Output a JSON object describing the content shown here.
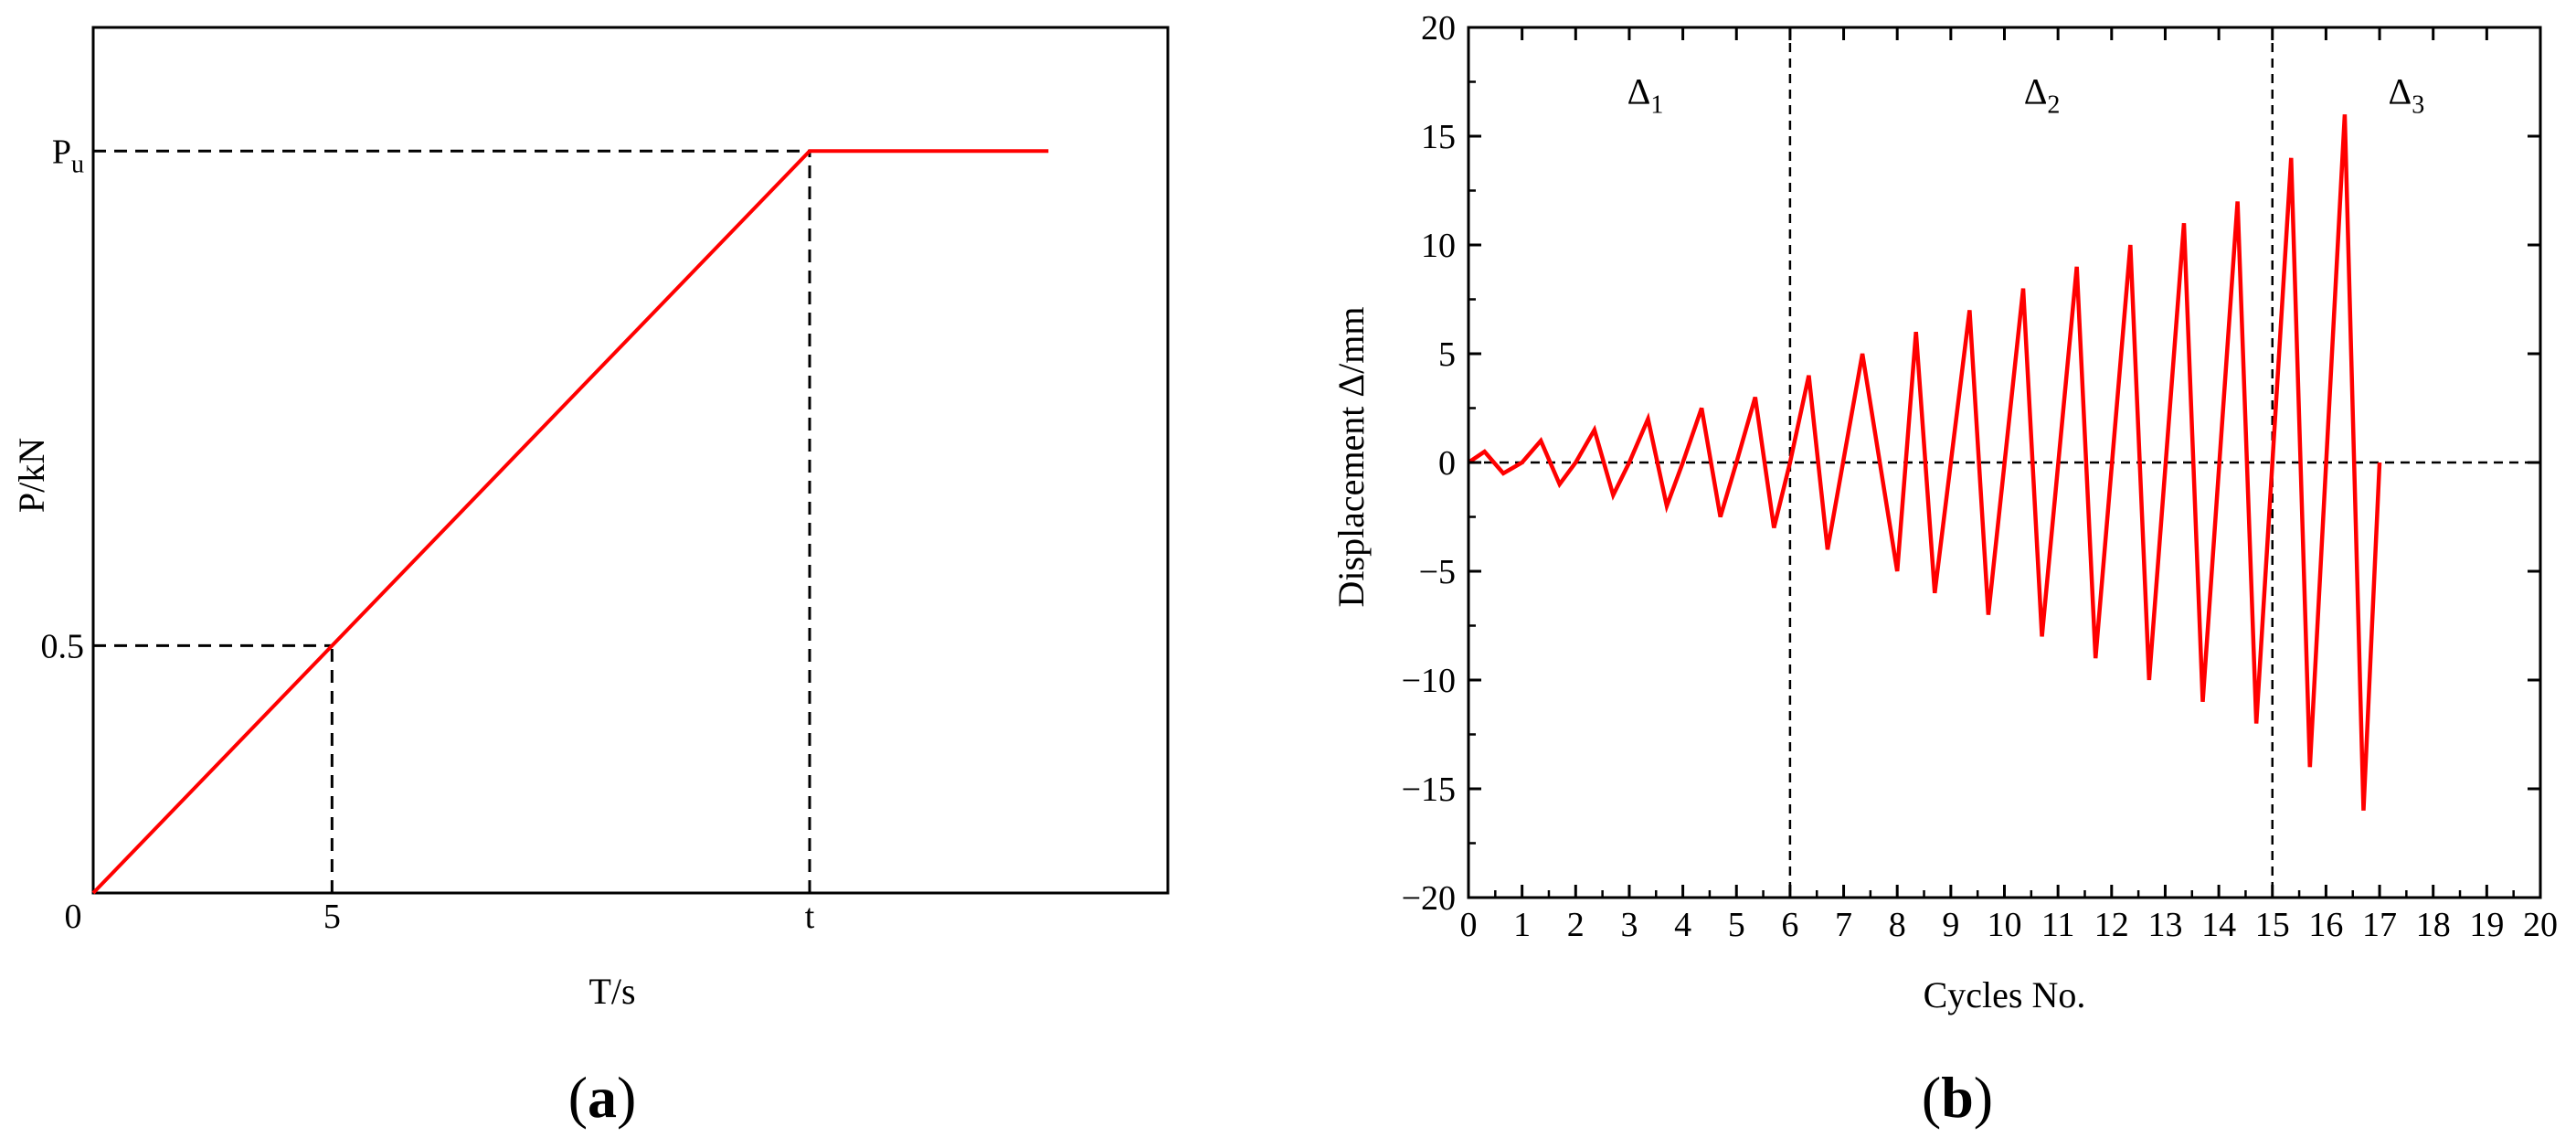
{
  "chart_data": [
    {
      "type": "line",
      "panel_label": "(a)",
      "xlabel": "T/s",
      "ylabel": "P/kN",
      "origin_label": "0",
      "x_tick_labels": [
        {
          "value": 5,
          "label": "5"
        },
        {
          "value": 15,
          "label": "t"
        }
      ],
      "y_tick_labels": [
        {
          "value": 0.5,
          "label": "0.5"
        },
        {
          "value": 1.5,
          "label": "P",
          "subscript": "u"
        }
      ],
      "xlim": [
        0,
        22.5
      ],
      "ylim": [
        0,
        1.75
      ],
      "series": [
        {
          "x": [
            0,
            15,
            20
          ],
          "y": [
            0,
            1.5,
            1.5
          ],
          "color": "#ff0000"
        }
      ],
      "reference_lines": [
        {
          "from": [
            0,
            0.5
          ],
          "to": [
            5,
            0.5
          ]
        },
        {
          "from": [
            5,
            0
          ],
          "to": [
            5,
            0.5
          ]
        },
        {
          "from": [
            0,
            1.5
          ],
          "to": [
            15,
            1.5
          ]
        },
        {
          "from": [
            15,
            0
          ],
          "to": [
            15,
            1.5
          ]
        }
      ],
      "grid": false
    },
    {
      "type": "line",
      "panel_label": "(b)",
      "xlabel": "Cycles No.",
      "ylabel": "Displacement Δ/mm",
      "xlim": [
        0,
        20
      ],
      "ylim": [
        -20,
        20
      ],
      "x_ticks": [
        0,
        1,
        2,
        3,
        4,
        5,
        6,
        7,
        8,
        9,
        10,
        11,
        12,
        13,
        14,
        15,
        16,
        17,
        18,
        19,
        20
      ],
      "y_ticks": [
        -20,
        -15,
        -10,
        -5,
        0,
        5,
        10,
        15,
        20
      ],
      "y_tick_labels": [
        "−20",
        "−15",
        "−10",
        "−5",
        "0",
        "5",
        "10",
        "15",
        "20"
      ],
      "series": [
        {
          "color": "#ff0000",
          "x": [
            0,
            0.3,
            0.65,
            1.0,
            1.35,
            1.7,
            2.0,
            2.35,
            2.7,
            3.0,
            3.35,
            3.7,
            4.0,
            4.35,
            4.7,
            5.0,
            5.35,
            5.7,
            6.0,
            6.35,
            6.7,
            7.35,
            8.0,
            8.35,
            8.7,
            9.35,
            9.7,
            10.35,
            10.7,
            11.35,
            11.7,
            12.35,
            12.7,
            13.35,
            13.7,
            14.35,
            14.7,
            15.35,
            15.7,
            16.35,
            16.7,
            17.0
          ],
          "y": [
            0,
            0.5,
            -0.5,
            0,
            1,
            -1,
            0,
            1.5,
            -1.5,
            0,
            2,
            -2,
            0,
            2.5,
            -2.5,
            0,
            3,
            -3,
            0,
            4,
            -4,
            5,
            -5,
            6,
            -6,
            7,
            -7,
            8,
            -8,
            9,
            -9,
            10,
            -10,
            11,
            -11,
            12,
            -12,
            14,
            -14,
            16,
            -16,
            0
          ]
        }
      ],
      "reference_lines": [
        {
          "axis": "y",
          "value": 0
        },
        {
          "axis": "x",
          "value": 6
        },
        {
          "axis": "x",
          "value": 15
        }
      ],
      "annotations": [
        {
          "base": "Δ",
          "sub": "1",
          "x": 3.3,
          "y": 17
        },
        {
          "base": "Δ",
          "sub": "2",
          "x": 10.7,
          "y": 17
        },
        {
          "base": "Δ",
          "sub": "3",
          "x": 17.5,
          "y": 17
        }
      ],
      "grid": false
    }
  ]
}
